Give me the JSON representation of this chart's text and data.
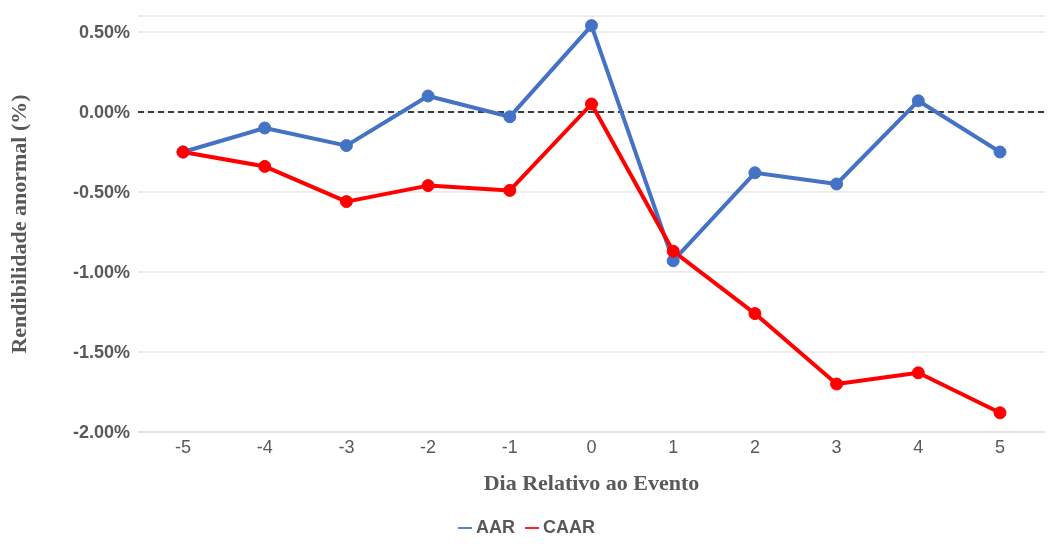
{
  "chart_data": {
    "type": "line",
    "xlabel": "Dia Relativo ao Evento",
    "ylabel": "Rendibilidade anormal (%)",
    "categories": [
      "-5",
      "-4",
      "-3",
      "-2",
      "-1",
      "0",
      "1",
      "2",
      "3",
      "4",
      "5"
    ],
    "series": [
      {
        "name": "AAR",
        "color": "#4472c4",
        "values": [
          -0.25,
          -0.1,
          -0.21,
          0.1,
          -0.03,
          0.54,
          -0.93,
          -0.38,
          -0.45,
          0.07,
          -0.25
        ]
      },
      {
        "name": "CAAR",
        "color": "#ff0000",
        "values": [
          -0.25,
          -0.34,
          -0.56,
          -0.46,
          -0.49,
          0.05,
          -0.87,
          -1.26,
          -1.7,
          -1.63,
          -1.88
        ]
      }
    ],
    "ylim": [
      -2.0,
      0.6
    ],
    "yticks": [
      {
        "value": -2.0,
        "label": "-2.00%"
      },
      {
        "value": -1.5,
        "label": "-1.50%"
      },
      {
        "value": -1.0,
        "label": "-1.00%"
      },
      {
        "value": -0.5,
        "label": "-0.50%"
      },
      {
        "value": 0,
        "label": "0.00%"
      },
      {
        "value": 0.5,
        "label": "0.50%"
      }
    ],
    "ref_lines": [
      {
        "axis": "y",
        "value": 0,
        "color": "#000000",
        "line_style": "dashed"
      }
    ],
    "grid": "y",
    "legend": "bottom",
    "marker": "circle",
    "line_style": "solid"
  }
}
